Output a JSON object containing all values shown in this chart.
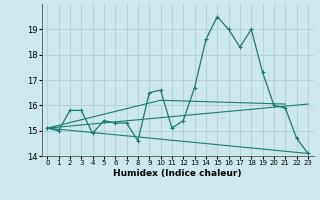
{
  "xlabel": "Humidex (Indice chaleur)",
  "xlim": [
    -0.5,
    23.5
  ],
  "ylim": [
    14,
    20
  ],
  "yticks": [
    14,
    15,
    16,
    17,
    18,
    19
  ],
  "xticks": [
    0,
    1,
    2,
    3,
    4,
    5,
    6,
    7,
    8,
    9,
    10,
    11,
    12,
    13,
    14,
    15,
    16,
    17,
    18,
    19,
    20,
    21,
    22,
    23
  ],
  "bg_color": "#cce8ec",
  "grid_color": "#aed0d6",
  "line_color": "#1a7a6e",
  "line1_x": [
    0,
    1,
    2,
    3,
    4,
    5,
    6,
    7,
    8,
    9,
    10,
    11,
    12,
    13,
    14,
    15,
    16,
    17,
    18,
    19,
    20,
    21,
    22,
    23
  ],
  "line1_y": [
    15.1,
    15.0,
    15.8,
    15.8,
    14.9,
    15.4,
    15.3,
    15.3,
    14.6,
    16.5,
    16.6,
    15.1,
    15.4,
    16.7,
    18.6,
    19.5,
    19.0,
    18.3,
    19.0,
    17.3,
    16.0,
    15.9,
    14.7,
    14.1
  ],
  "line2_x": [
    0,
    23
  ],
  "line2_y": [
    15.1,
    16.05
  ],
  "line3_x": [
    0,
    23
  ],
  "line3_y": [
    15.1,
    14.1
  ],
  "line4_x": [
    0,
    10,
    21
  ],
  "line4_y": [
    15.1,
    16.2,
    16.05
  ]
}
